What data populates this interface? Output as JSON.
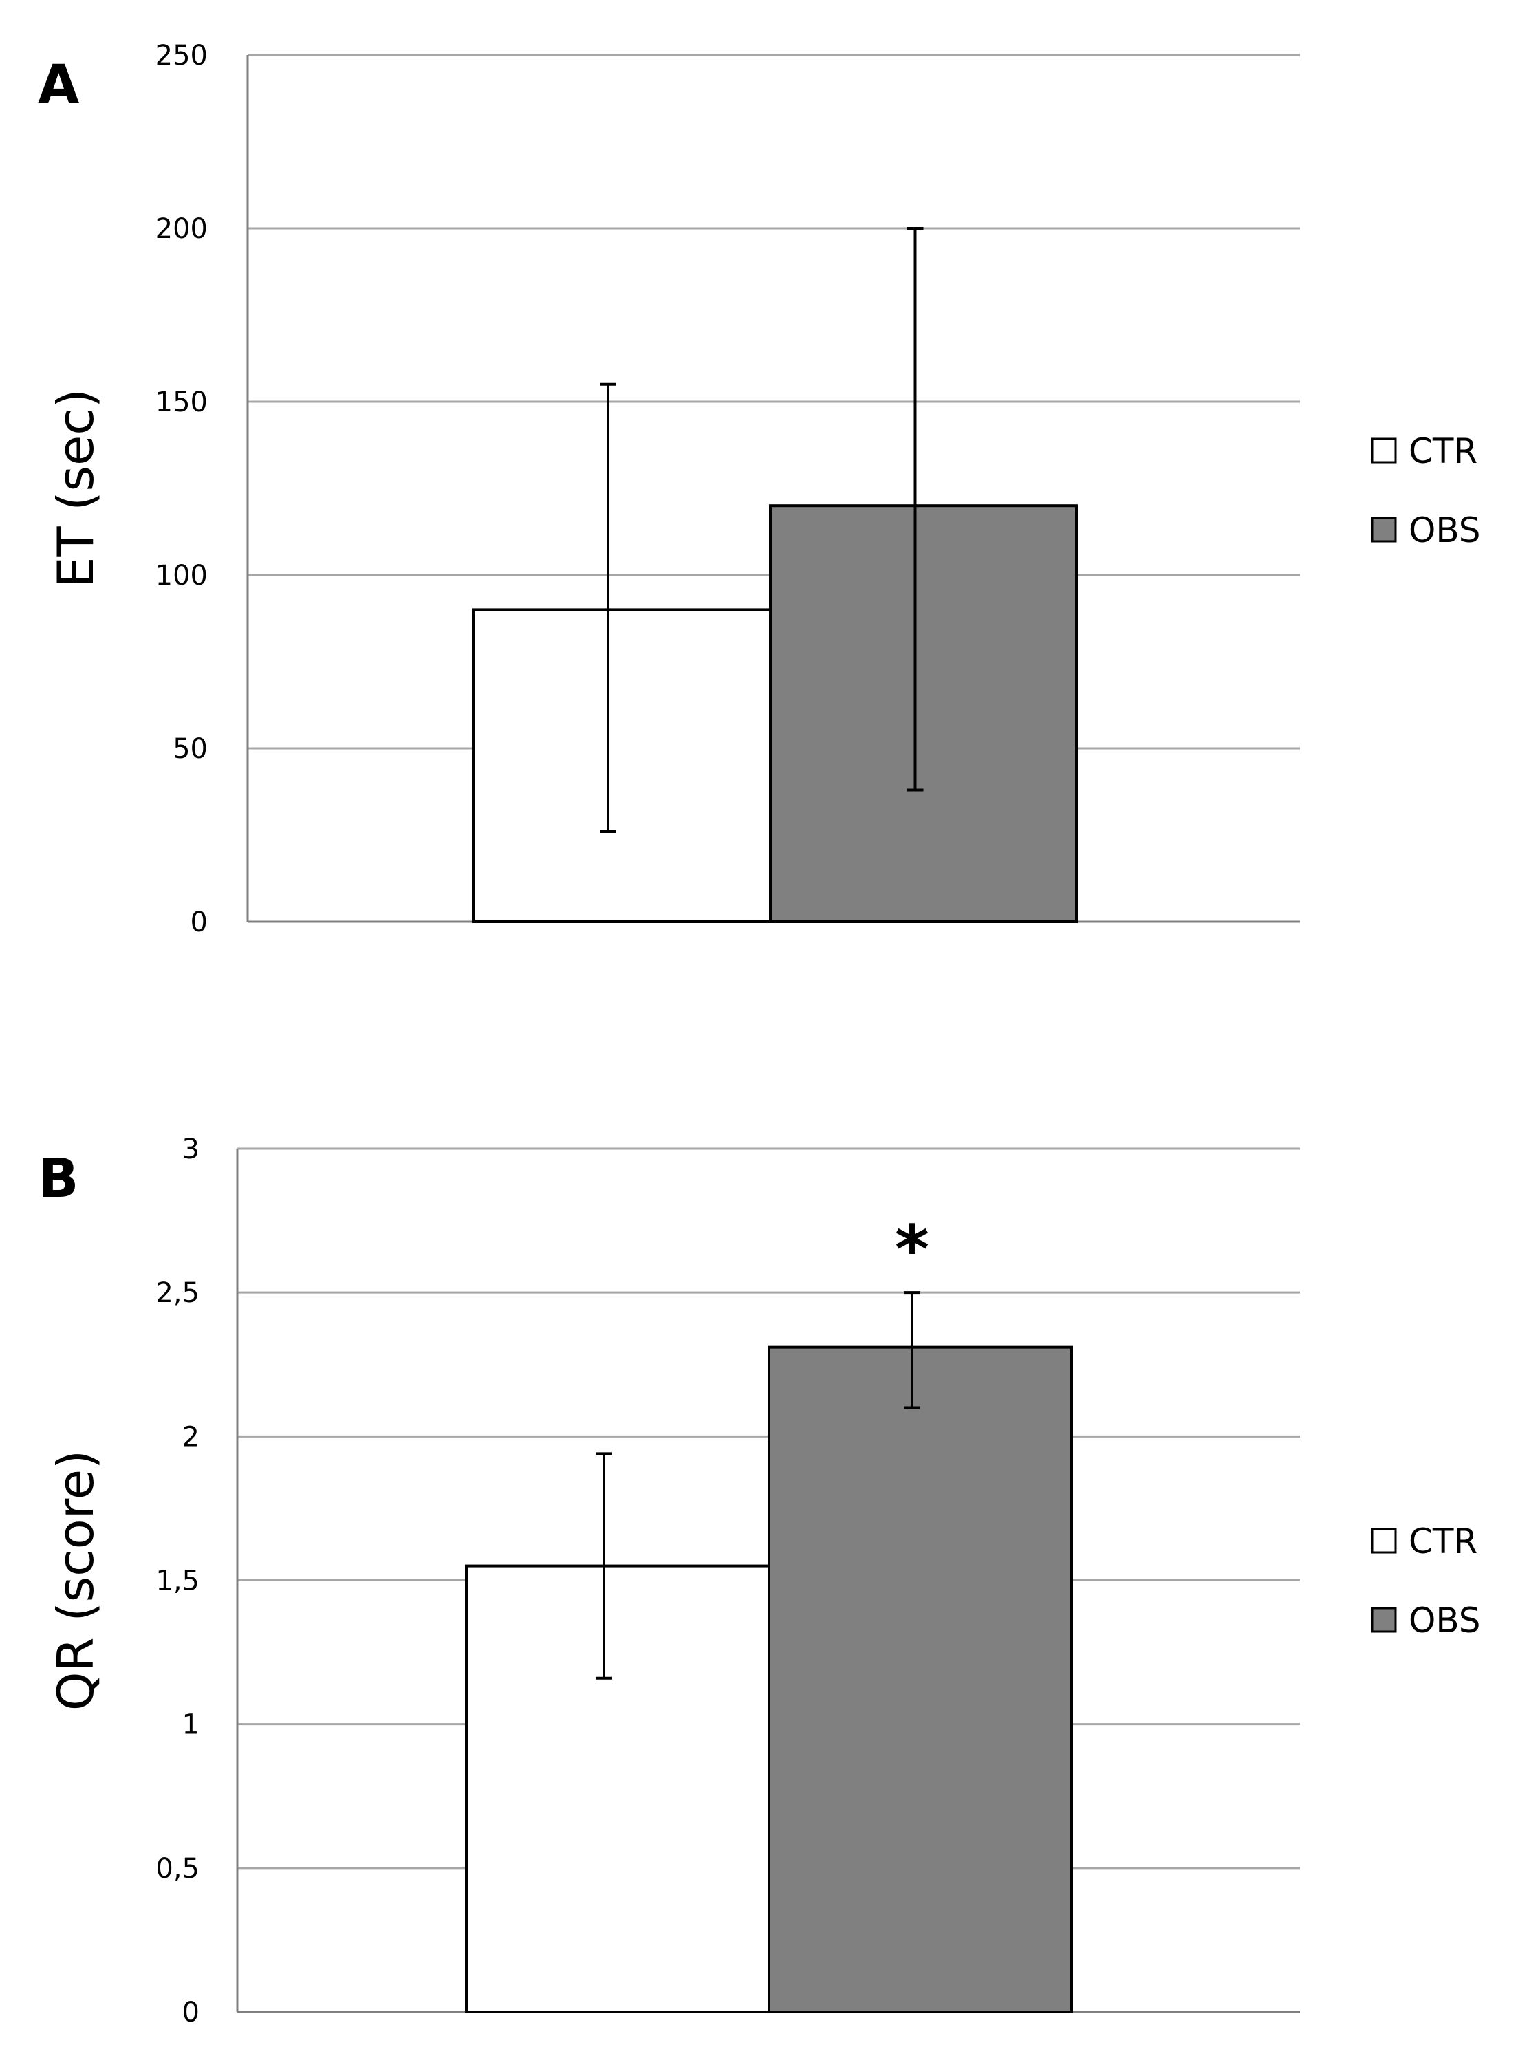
{
  "chart_data": [
    {
      "type": "bar",
      "panel_label": "A",
      "title": "",
      "ylabel": "ET (sec)",
      "xlabel": "",
      "ylim": [
        0,
        250
      ],
      "yticks": [
        0,
        50,
        100,
        150,
        200,
        250
      ],
      "ytick_labels": [
        "0",
        "50",
        "100",
        "150",
        "200",
        "250"
      ],
      "grid": true,
      "legend_position": "right",
      "series": [
        {
          "name": "CTR",
          "color": "#ffffff",
          "value": 90,
          "error_low": 26,
          "error_high": 155
        },
        {
          "name": "OBS",
          "color": "#808080",
          "value": 120,
          "error_low": 38,
          "error_high": 200
        }
      ],
      "annotation": ""
    },
    {
      "type": "bar",
      "panel_label": "B",
      "title": "",
      "ylabel": "QR (score)",
      "xlabel": "",
      "ylim": [
        0,
        3
      ],
      "yticks": [
        0,
        0.5,
        1,
        1.5,
        2,
        2.5,
        3
      ],
      "ytick_labels": [
        "0",
        "0,5",
        "1",
        "1,5",
        "2",
        "2,5",
        "3"
      ],
      "grid": true,
      "legend_position": "right",
      "series": [
        {
          "name": "CTR",
          "color": "#ffffff",
          "value": 1.55,
          "error_low": 1.16,
          "error_high": 1.94
        },
        {
          "name": "OBS",
          "color": "#808080",
          "value": 2.31,
          "error_low": 2.1,
          "error_high": 2.5
        }
      ],
      "annotation": "*"
    }
  ]
}
